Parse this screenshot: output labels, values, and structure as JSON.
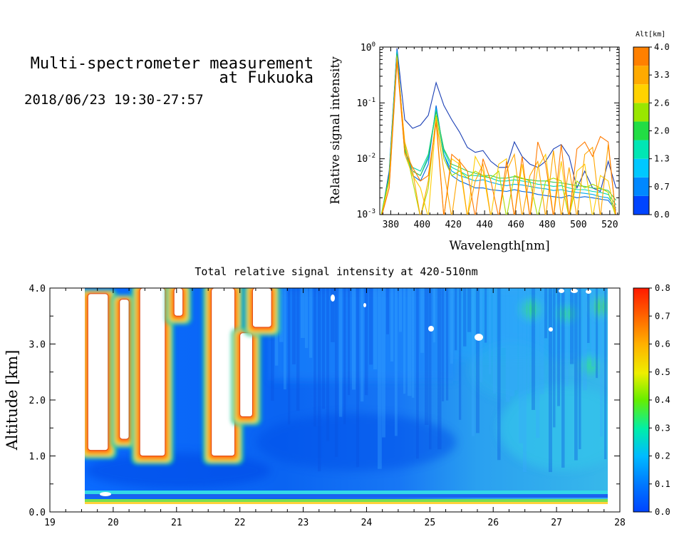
{
  "header": {
    "title_line1": "Multi-spectrometer measurement",
    "title_line2": "at Fukuoka",
    "datetime": "2018/06/23 19:30-27:57"
  },
  "chart_data": [
    {
      "type": "line",
      "xlabel": "Wavelength[nm]",
      "ylabel": "Relative signal intensity",
      "xlim": [
        373,
        526
      ],
      "ylim": [
        0.001,
        1
      ],
      "yscale": "log",
      "x_ticks": [
        380,
        400,
        420,
        440,
        460,
        480,
        500,
        520
      ],
      "y_ticks": [
        "10^-3",
        "10^-2",
        "10^-1",
        "10^0"
      ],
      "colorbar": {
        "title": "Alt[km]",
        "ticks": [
          "0.0",
          "0.7",
          "1.3",
          "2.0",
          "2.6",
          "3.3",
          "4.0"
        ],
        "colors": [
          "#0044ff",
          "#0088ff",
          "#00c8ff",
          "#00e6b4",
          "#22dd44",
          "#99e600",
          "#ffd200",
          "#ffaa00",
          "#ff8000"
        ]
      },
      "x": [
        374,
        379,
        384,
        389,
        394,
        399,
        404,
        409,
        414,
        419,
        424,
        429,
        434,
        439,
        444,
        449,
        454,
        459,
        464,
        469,
        474,
        479,
        484,
        489,
        494,
        499,
        504,
        509,
        514,
        519,
        524
      ],
      "series": [
        {
          "color": "#1a3fb5",
          "values": [
            0.0009,
            0.006,
            0.95,
            0.05,
            0.035,
            0.04,
            0.06,
            0.23,
            0.09,
            0.05,
            0.03,
            0.016,
            0.013,
            0.014,
            0.009,
            0.007,
            0.007,
            0.02,
            0.011,
            0.008,
            0.007,
            0.009,
            0.015,
            0.018,
            0.011,
            0.003,
            0.006,
            0.003,
            0.0026,
            0.009,
            0.003
          ]
        },
        {
          "color": "#0066dd",
          "values": [
            0.0009,
            0.005,
            0.9,
            0.015,
            0.005,
            0.004,
            0.008,
            0.09,
            0.012,
            0.005,
            0.004,
            0.0035,
            0.003,
            0.003,
            0.0028,
            0.0027,
            0.0026,
            0.0028,
            0.0026,
            0.0025,
            0.0023,
            0.0022,
            0.0021,
            0.002,
            0.0022,
            0.002,
            0.0021,
            0.002,
            0.0019,
            0.0018,
            0.0012
          ]
        },
        {
          "color": "#00aaee",
          "values": [
            0.0009,
            0.005,
            0.85,
            0.012,
            0.006,
            0.005,
            0.01,
            0.08,
            0.012,
            0.006,
            0.005,
            0.0045,
            0.004,
            0.0042,
            0.0038,
            0.0035,
            0.0033,
            0.0035,
            0.0034,
            0.0032,
            0.003,
            0.0029,
            0.0027,
            0.0028,
            0.0026,
            0.0025,
            0.0024,
            0.0023,
            0.0021,
            0.002,
            0.0013
          ]
        },
        {
          "color": "#00d8b0",
          "values": [
            0.001,
            0.005,
            0.8,
            0.014,
            0.007,
            0.006,
            0.012,
            0.075,
            0.014,
            0.007,
            0.006,
            0.005,
            0.005,
            0.0048,
            0.0045,
            0.004,
            0.004,
            0.0042,
            0.004,
            0.0038,
            0.0035,
            0.0034,
            0.0032,
            0.0033,
            0.003,
            0.0028,
            0.0028,
            0.0026,
            0.0025,
            0.0023,
            0.0015
          ]
        },
        {
          "color": "#33cc55",
          "values": [
            0.001,
            0.005,
            0.75,
            0.015,
            0.006,
            0.005,
            0.011,
            0.07,
            0.015,
            0.008,
            0.007,
            0.006,
            0.0055,
            0.005,
            0.005,
            0.0045,
            0.0045,
            0.0048,
            0.0044,
            0.0042,
            0.004,
            0.004,
            0.0038,
            0.0037,
            0.0035,
            0.0033,
            0.0032,
            0.003,
            0.0029,
            0.0027,
            0.0018
          ]
        },
        {
          "color": "#aadd00",
          "values": [
            0.001,
            0.004,
            0.7,
            0.018,
            0.004,
            0.0009,
            0.003,
            0.06,
            0.01,
            0.005,
            0.006,
            0.0045,
            0.006,
            0.005,
            0.0045,
            0.006,
            0.0009,
            0.005,
            0.0045,
            0.004,
            0.0009,
            0.004,
            0.0045,
            0.004,
            0.0009,
            0.004,
            0.003,
            0.0035,
            0.003,
            0.0025,
            0.0009
          ]
        },
        {
          "color": "#ffcc00",
          "values": [
            0.0009,
            0.004,
            0.65,
            0.012,
            0.005,
            0.003,
            0.0009,
            0.055,
            0.0009,
            0.01,
            0.008,
            0.0009,
            0.011,
            0.006,
            0.0009,
            0.008,
            0.01,
            0.0009,
            0.008,
            0.0009,
            0.007,
            0.012,
            0.0009,
            0.009,
            0.0009,
            0.006,
            0.008,
            0.0009,
            0.005,
            0.004,
            0.0009
          ]
        },
        {
          "color": "#ffa500",
          "values": [
            0.0009,
            0.003,
            0.6,
            0.02,
            0.006,
            0.0009,
            0.004,
            0.05,
            0.006,
            0.0009,
            0.01,
            0.0009,
            0.004,
            0.008,
            0.0009,
            0.0009,
            0.006,
            0.012,
            0.0009,
            0.005,
            0.009,
            0.0009,
            0.014,
            0.0009,
            0.007,
            0.0009,
            0.012,
            0.016,
            0.0009,
            0.018,
            0.0009
          ]
        },
        {
          "color": "#ff7a00",
          "values": [
            0.0009,
            0.003,
            0.55,
            0.013,
            0.007,
            0.004,
            0.005,
            0.045,
            0.0009,
            0.012,
            0.009,
            0.006,
            0.0009,
            0.01,
            0.004,
            0.0009,
            0.009,
            0.0009,
            0.011,
            0.0009,
            0.02,
            0.008,
            0.0009,
            0.018,
            0.0009,
            0.015,
            0.02,
            0.011,
            0.025,
            0.02,
            0.0009
          ]
        }
      ]
    },
    {
      "type": "heatmap",
      "title": "Total relative signal intensity at 420-510nm",
      "ylabel": "Altitude [km]",
      "xlim": [
        19,
        28
      ],
      "ylim": [
        0.0,
        4.0
      ],
      "x_ticks": [
        "19",
        "20",
        "21",
        "22",
        "23",
        "24",
        "25",
        "26",
        "27",
        "28"
      ],
      "y_ticks": [
        "0.0",
        "1.0",
        "2.0",
        "3.0",
        "4.0"
      ],
      "data_xrange": [
        19.5,
        27.95
      ],
      "colorbar": {
        "ticks": [
          "0.0",
          "0.1",
          "0.2",
          "0.3",
          "0.4",
          "0.5",
          "0.6",
          "0.7",
          "0.8"
        ],
        "vmin": 0.0,
        "vmax": 0.8
      },
      "saturated_columns": [
        {
          "x0": 19.6,
          "x1": 19.92,
          "alt_min": 1.1,
          "alt_max": 3.9
        },
        {
          "x0": 20.1,
          "x1": 20.25,
          "alt_min": 1.3,
          "alt_max": 3.8
        },
        {
          "x0": 20.42,
          "x1": 20.82,
          "alt_min": 1.0,
          "alt_max": 4.0
        },
        {
          "x0": 20.96,
          "x1": 21.1,
          "alt_min": 3.5,
          "alt_max": 4.0
        },
        {
          "x0": 21.55,
          "x1": 21.92,
          "alt_min": 1.0,
          "alt_max": 4.0
        },
        {
          "x0": 22.0,
          "x1": 22.2,
          "alt_min": 1.7,
          "alt_max": 3.2
        },
        {
          "x0": 22.2,
          "x1": 22.5,
          "alt_min": 3.3,
          "alt_max": 4.0
        }
      ]
    }
  ]
}
